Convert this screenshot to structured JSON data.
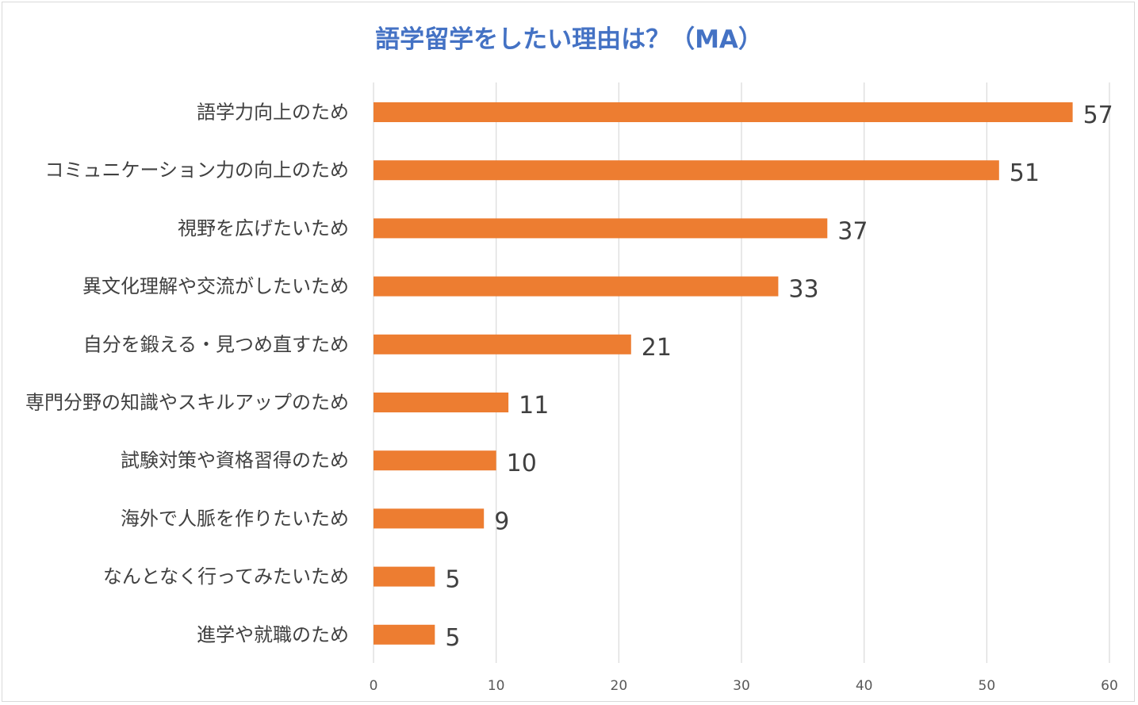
{
  "chart_data": {
    "type": "bar",
    "orientation": "horizontal",
    "title": "語学留学をしたい理由は？（MA）",
    "categories": [
      "語学力向上のため",
      "コミュニケーション力の向上のため",
      "視野を広げたいため",
      "異文化理解や交流がしたいため",
      "自分を鍛える・見つめ直すため",
      "専門分野の知識やスキルアップのため",
      "試験対策や資格習得のため",
      "海外で人脈を作りたいため",
      "なんとなく行ってみたいため",
      "進学や就職のため"
    ],
    "values": [
      57,
      51,
      37,
      33,
      21,
      11,
      10,
      9,
      5,
      5
    ],
    "xlim": [
      0,
      60
    ],
    "xticks": [
      0,
      10,
      20,
      30,
      40,
      50,
      60
    ],
    "xlabel": "",
    "ylabel": "",
    "grid": "vertical",
    "legend": "none",
    "data_labels": true
  },
  "colors": {
    "bar": "#ED7D31",
    "title": "#4472C4",
    "grid": "#d9d9d9"
  }
}
